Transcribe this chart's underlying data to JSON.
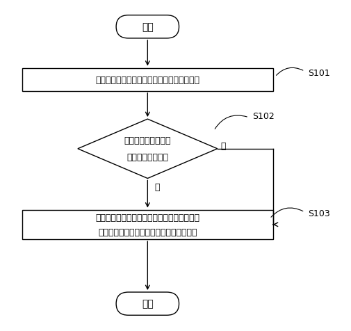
{
  "bg_color": "#ffffff",
  "line_color": "#000000",
  "text_color": "#000000",
  "start_text": "开始",
  "end_text": "结束",
  "step1_text": "获取周边环境中电子设备所发出的音量分贝值",
  "step2_line1": "音量分贝值是否超过",
  "step2_line2": "预先设置的阈值？",
  "step3_line1": "通过无线传输方式向电子设备发送音量控制信",
  "step3_line2": "号以使电子设备根据音量控制信号调整音量",
  "label1": "S101",
  "label2": "S102",
  "label3": "S103",
  "yes_text": "是",
  "no_text": "否",
  "figw": 5.05,
  "figh": 4.77,
  "dpi": 100
}
